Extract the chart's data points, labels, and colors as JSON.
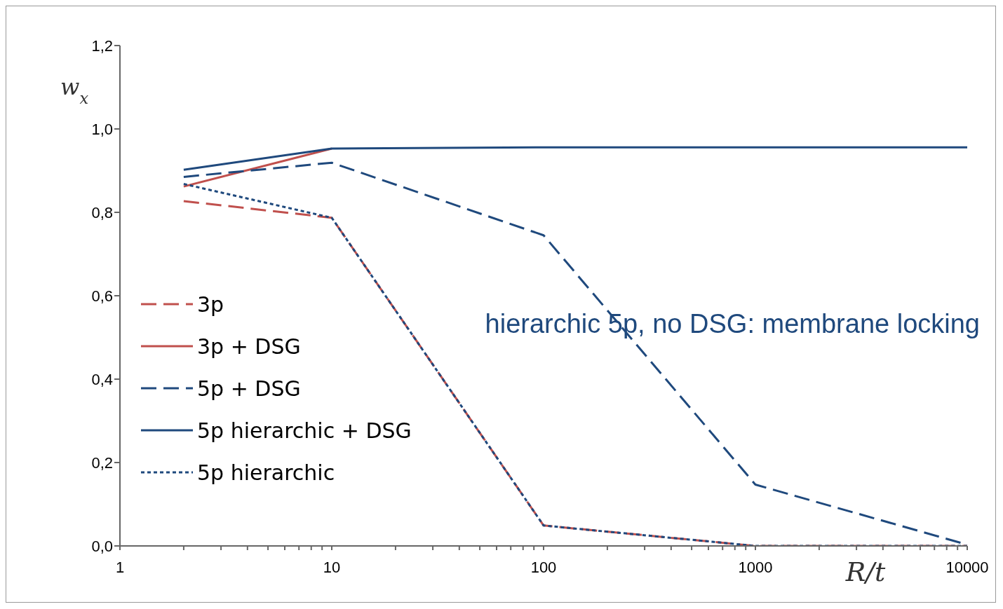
{
  "chart_data": {
    "type": "line",
    "xlabel": "R/t",
    "ylabel": "w$_{x}$",
    "log": "x",
    "x": [
      2,
      10,
      100,
      1000,
      10000
    ],
    "series": [
      {
        "name": "3p",
        "color": "#c0504d",
        "line_style": "dashed",
        "values": [
          0.827,
          0.787,
          0.049,
          0,
          0
        ]
      },
      {
        "name": "3p + DSG",
        "color": "#c0504d",
        "line_style": "solid",
        "values": [
          0.862,
          0.953,
          null,
          null,
          null
        ]
      },
      {
        "name": "5p + DSG",
        "color": "#1f497d",
        "line_style": "dashed",
        "values": [
          0.885,
          0.919,
          0.745,
          0.147,
          0.003
        ]
      },
      {
        "name": "5p hierarchic + DSG",
        "color": "#1f497d",
        "line_style": "solid",
        "values": [
          0.902,
          0.953,
          0.956,
          0.956,
          0.956
        ]
      },
      {
        "name": "5p hierarchic",
        "color": "#1f497d",
        "line_style": "dotted",
        "values": [
          0.868,
          0.787,
          0.049,
          0,
          0
        ]
      }
    ],
    "xlim": [
      1,
      10000
    ],
    "xticks": [
      1,
      {
        "value": 2,
        "label": null
      },
      {
        "value": 3,
        "label": null
      },
      {
        "value": 4,
        "label": null
      },
      {
        "value": 5,
        "label": null
      },
      {
        "value": 6,
        "label": null
      },
      {
        "value": 7,
        "label": null
      },
      {
        "value": 8,
        "label": null
      },
      {
        "value": 9,
        "label": null
      },
      10,
      {
        "value": 20,
        "label": null
      },
      {
        "value": 30,
        "label": null
      },
      {
        "value": 40,
        "label": null
      },
      {
        "value": 50,
        "label": null
      },
      {
        "value": 60,
        "label": null
      },
      {
        "value": 70,
        "label": null
      },
      {
        "value": 80,
        "label": null
      },
      {
        "value": 90,
        "label": null
      },
      100,
      {
        "value": 200,
        "label": null
      },
      {
        "value": 300,
        "label": null
      },
      {
        "value": 400,
        "label": null
      },
      {
        "value": 500,
        "label": null
      },
      {
        "value": 600,
        "label": null
      },
      {
        "value": 700,
        "label": null
      },
      {
        "value": 800,
        "label": null
      },
      {
        "value": 900,
        "label": null
      },
      1000,
      {
        "value": 2000,
        "label": null
      },
      {
        "value": 3000,
        "label": null
      },
      {
        "value": 4000,
        "label": null
      },
      {
        "value": 5000,
        "label": null
      },
      {
        "value": 6000,
        "label": null
      },
      {
        "value": 7000,
        "label": null
      },
      {
        "value": 8000,
        "label": null
      },
      {
        "value": 9000,
        "label": null
      },
      10000
    ],
    "ylim": [
      0,
      1.2
    ],
    "yticks": [
      {
        "value": 0,
        "label": "0,0"
      },
      {
        "value": 0.2,
        "label": "0,2"
      },
      {
        "value": 0.4,
        "label": "0,4"
      },
      {
        "value": 0.6,
        "label": "0,6"
      },
      {
        "value": 0.8,
        "label": "0,8"
      },
      {
        "value": 1.0,
        "label": "1,0"
      },
      {
        "value": 1.2,
        "label": "1,2"
      }
    ],
    "grid": false,
    "legend": "left",
    "marker": "none",
    "annotations": [
      "hierarchic 5p, no DSG: membrane locking"
    ]
  }
}
